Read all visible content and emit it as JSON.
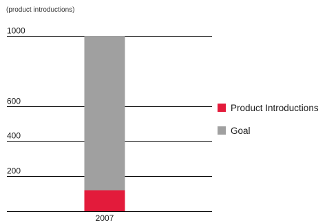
{
  "chart_data": {
    "type": "bar",
    "stacked": true,
    "unit_note": "(product introductions)",
    "categories": [
      "2007"
    ],
    "yticks": [
      1000,
      600,
      400,
      200
    ],
    "ylim": [
      0,
      1000
    ],
    "grid": true,
    "legend_position": "right",
    "series": [
      {
        "name": "Product Introductions",
        "color": "#e31b3b",
        "values": [
          120
        ]
      },
      {
        "name": "Goal",
        "color": "#a0a0a0",
        "values": [
          880
        ]
      }
    ]
  }
}
